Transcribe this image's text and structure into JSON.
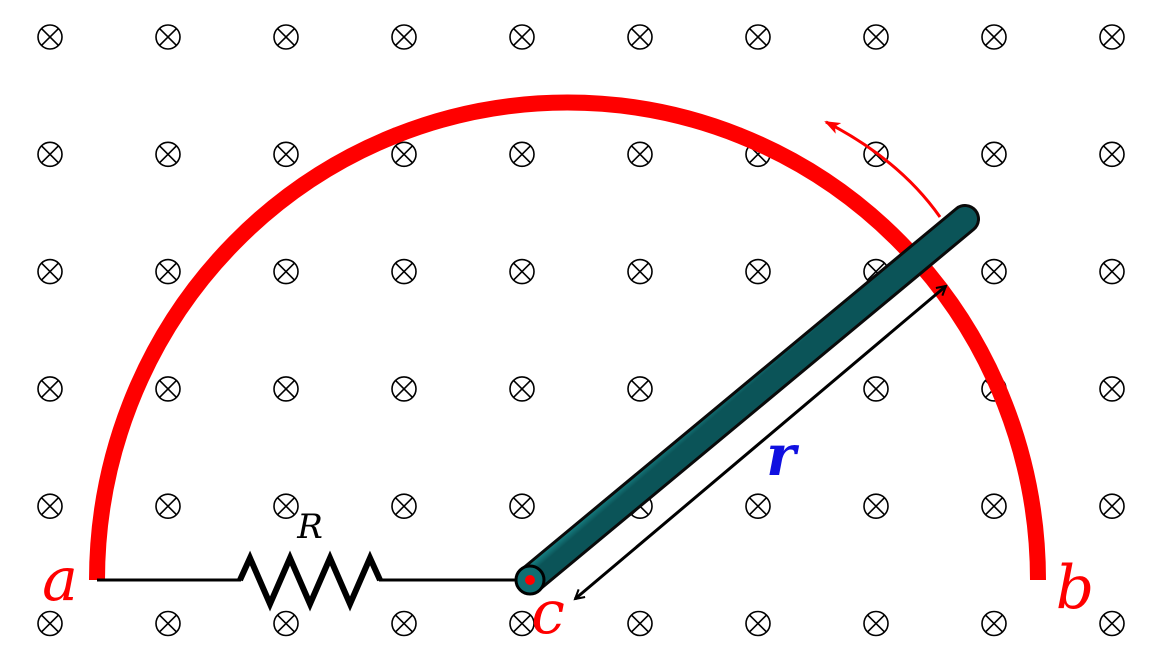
{
  "labels": {
    "point_a": "a",
    "point_b": "b",
    "point_c": "c",
    "resistor": "R",
    "radius": "r"
  },
  "field": {
    "symbol": "into-page-cross-icon",
    "rows": 6,
    "cols": 10
  },
  "colors": {
    "rail": "#ff0000",
    "rod_dark": "#0b5458",
    "rod_light": "#33f0f0",
    "radius_label": "#1010e0",
    "wire": "#000000"
  }
}
